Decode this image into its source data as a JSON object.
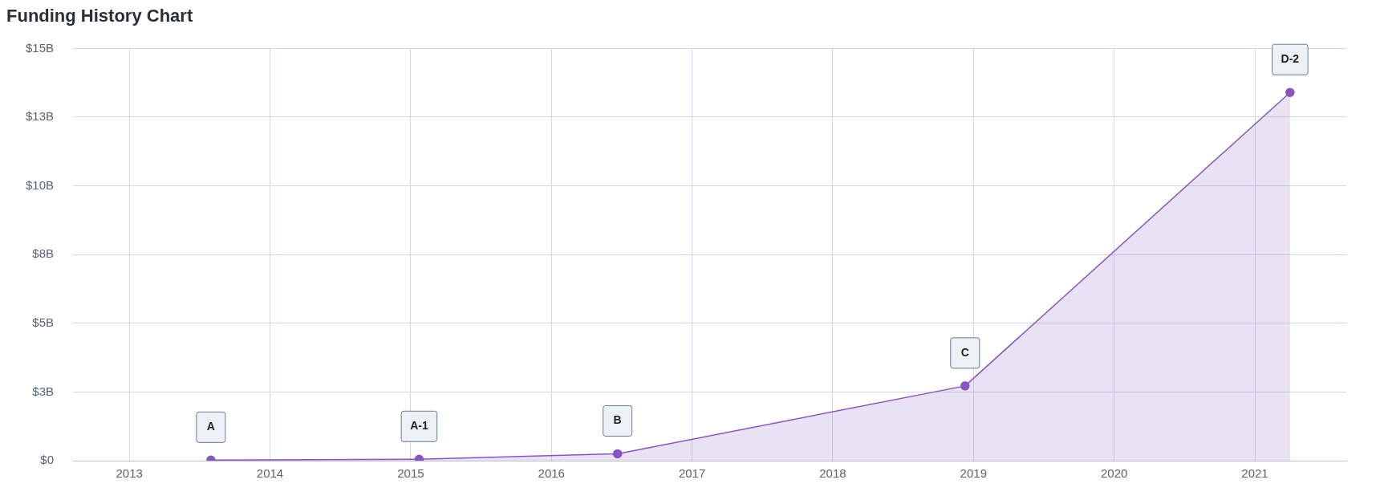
{
  "chart_data": {
    "type": "area",
    "title": "Funding History Chart",
    "x": [
      2013.58,
      2015.06,
      2016.47,
      2018.94,
      2021.25
    ],
    "series": [
      {
        "color": "#8756c0",
        "values": [
          0.02,
          0.05,
          0.25,
          2.72,
          13.4
        ]
      }
    ],
    "xlim": [
      2012.6,
      2021.65
    ],
    "xticks": [
      2013,
      2014,
      2015,
      2016,
      2017,
      2018,
      2019,
      2020,
      2021
    ],
    "ylim": [
      0,
      15
    ],
    "yticks": [
      {
        "value": 0,
        "label": "$0"
      },
      {
        "value": 2.5,
        "label": "$3B"
      },
      {
        "value": 5,
        "label": "$5B"
      },
      {
        "value": 7.5,
        "label": "$8B"
      },
      {
        "value": 10,
        "label": "$10B"
      },
      {
        "value": 12.5,
        "label": "$13B"
      },
      {
        "value": 15,
        "label": "$15B"
      }
    ],
    "annotations": [
      {
        "text": "A",
        "x": 2013.58,
        "y": 0.02
      },
      {
        "text": "A-1",
        "x": 2015.06,
        "y": 0.05
      },
      {
        "text": "B",
        "x": 2016.47,
        "y": 0.25
      },
      {
        "text": "C",
        "x": 2018.94,
        "y": 2.72
      },
      {
        "text": "D-2",
        "x": 2021.25,
        "y": 13.4
      }
    ],
    "grid": true,
    "legend": false,
    "marker": "circle",
    "line_style": "solid"
  }
}
